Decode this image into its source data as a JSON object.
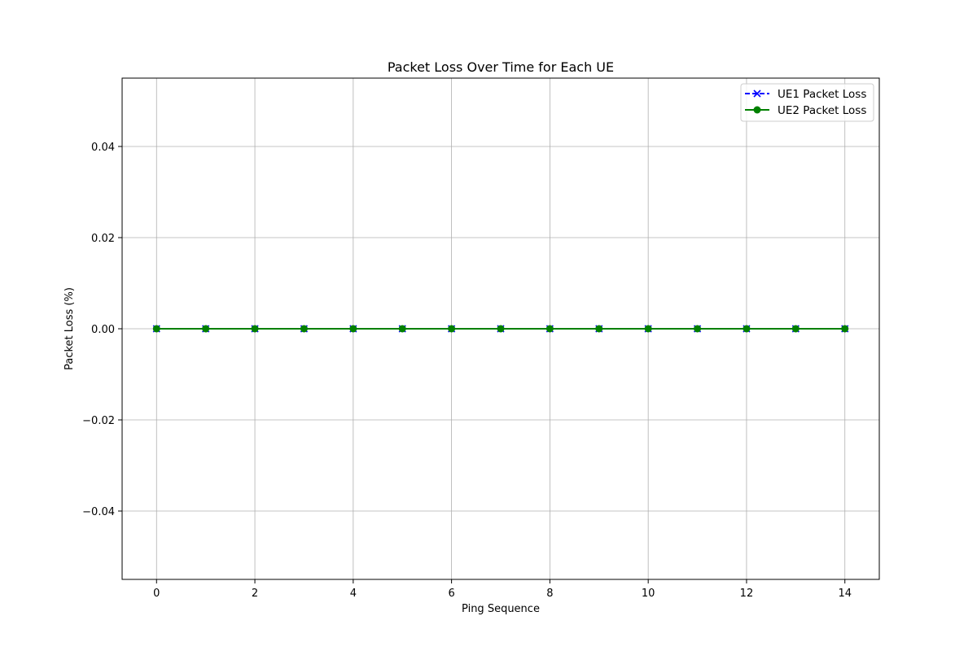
{
  "chart_data": {
    "type": "line",
    "title": "Packet Loss Over Time for Each UE",
    "xlabel": "Ping Sequence",
    "ylabel": "Packet Loss (%)",
    "x": [
      0,
      1,
      2,
      3,
      4,
      5,
      6,
      7,
      8,
      9,
      10,
      11,
      12,
      13,
      14
    ],
    "xlim": [
      -0.7,
      14.7
    ],
    "ylim": [
      -0.055,
      0.055
    ],
    "x_ticks": [
      0,
      2,
      4,
      6,
      8,
      10,
      12,
      14
    ],
    "x_tick_labels": [
      "0",
      "2",
      "4",
      "6",
      "8",
      "10",
      "12",
      "14"
    ],
    "y_ticks": [
      -0.04,
      -0.02,
      0.0,
      0.02,
      0.04
    ],
    "y_tick_labels": [
      "−0.04",
      "−0.02",
      "0.00",
      "0.02",
      "0.04"
    ],
    "grid": true,
    "legend_position": "top-right",
    "series": [
      {
        "name": "UE1 Packet Loss",
        "values": [
          0,
          0,
          0,
          0,
          0,
          0,
          0,
          0,
          0,
          0,
          0,
          0,
          0,
          0,
          0
        ],
        "color": "#0000ff",
        "line_style": "dashed",
        "marker": "x"
      },
      {
        "name": "UE2 Packet Loss",
        "values": [
          0,
          0,
          0,
          0,
          0,
          0,
          0,
          0,
          0,
          0,
          0,
          0,
          0,
          0,
          0
        ],
        "color": "#008000",
        "line_style": "solid",
        "marker": "circle"
      }
    ]
  }
}
